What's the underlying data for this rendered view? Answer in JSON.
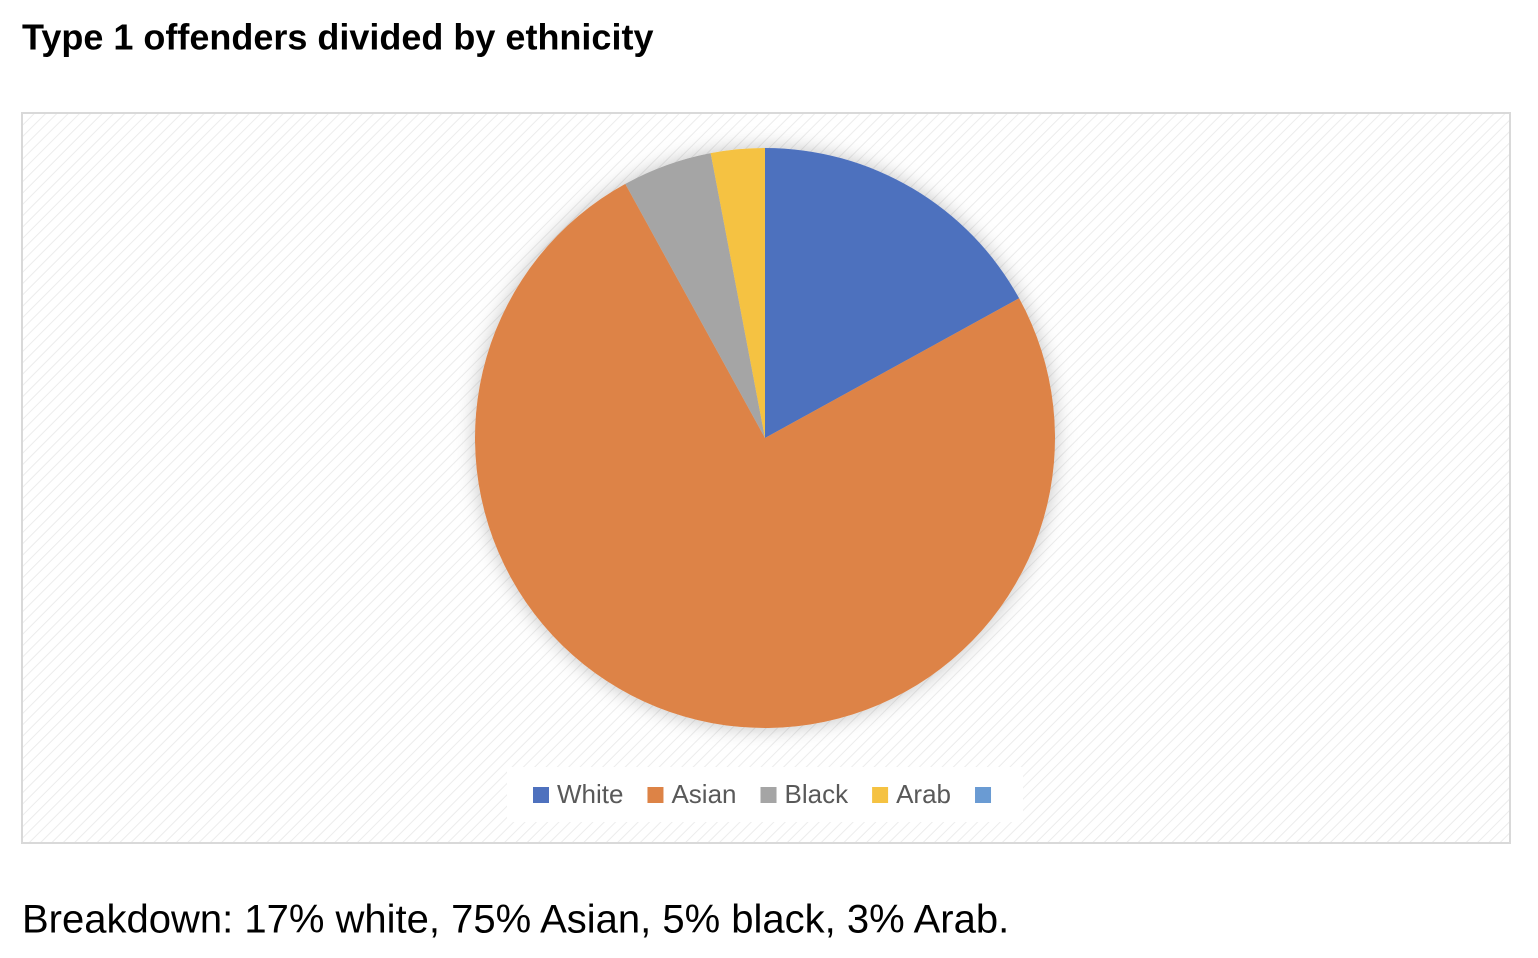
{
  "chart_data": {
    "type": "pie",
    "title": "Type 1 offenders divided by ethnicity",
    "categories": [
      "White",
      "Asian",
      "Black",
      "Arab",
      null
    ],
    "values": [
      17,
      75,
      5,
      3,
      0
    ],
    "colors": [
      "#4e71be",
      "#dd8346",
      "#a5a5a5",
      "#f5c242",
      "#6a9bd3"
    ],
    "legend": "bottom",
    "caption": "Breakdown: 17% white, 75% Asian, 5% black, 3% Arab."
  }
}
